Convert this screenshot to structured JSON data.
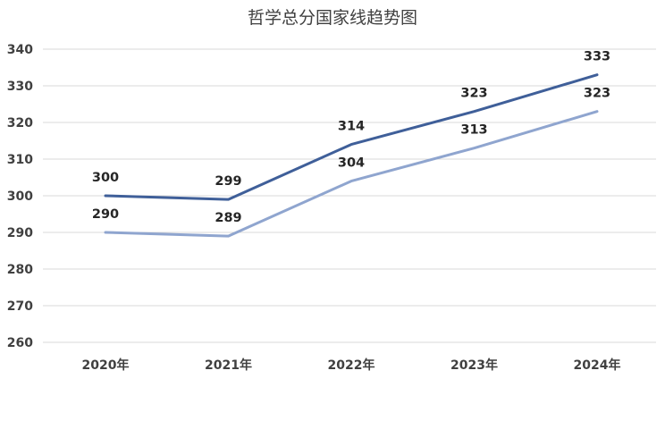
{
  "chart_data": {
    "type": "line",
    "title": "哲学总分国家线趋势图",
    "categories": [
      "2020年",
      "2021年",
      "2022年",
      "2023年",
      "2024年"
    ],
    "ylim": [
      260,
      340
    ],
    "yticks": [
      260,
      270,
      280,
      290,
      300,
      310,
      320,
      330,
      340
    ],
    "grid": true,
    "legend": "none",
    "series": [
      {
        "values": [
          300,
          299,
          314,
          323,
          333
        ],
        "color": "#3f5f99"
      },
      {
        "values": [
          290,
          289,
          304,
          313,
          323
        ],
        "color": "#8fa5cf"
      }
    ]
  }
}
